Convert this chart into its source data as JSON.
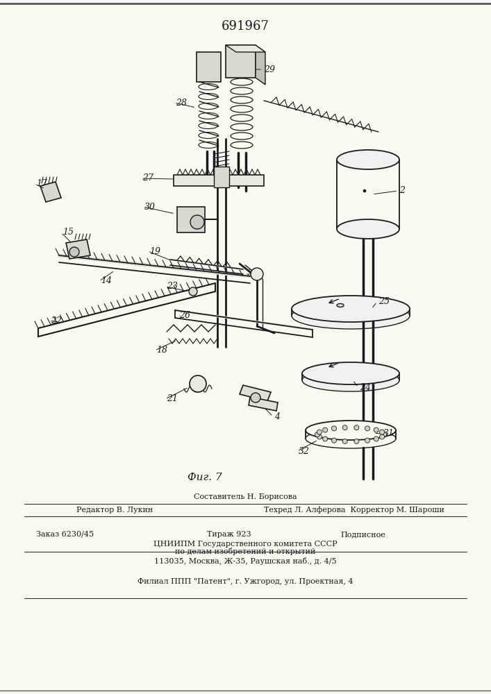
{
  "patent_number": "691967",
  "fig_label": "Фиг. 7",
  "bg_color": "#f8f8f5",
  "line_color": "#1a1a1a",
  "footer": {
    "line1": "Составитель Н. Борисова",
    "line2_left": "Редактор В. Лукин",
    "line2_right": "Техред Л. Алферова  Корректор М. Шароши",
    "line3_a": "Заказ 6230/45",
    "line3_b": "Тираж 923",
    "line3_c": "Подписное",
    "line4": "ЦНИИПМ Государственного комитета СССР",
    "line5": "по делам изобретений и открытий",
    "line6": "113035, Москва, Ж-35, Раушская наб., д. 4/5",
    "line7": "Филиал ППП \"Патент\", г. Ужгород, ул. Проектная, 4"
  }
}
